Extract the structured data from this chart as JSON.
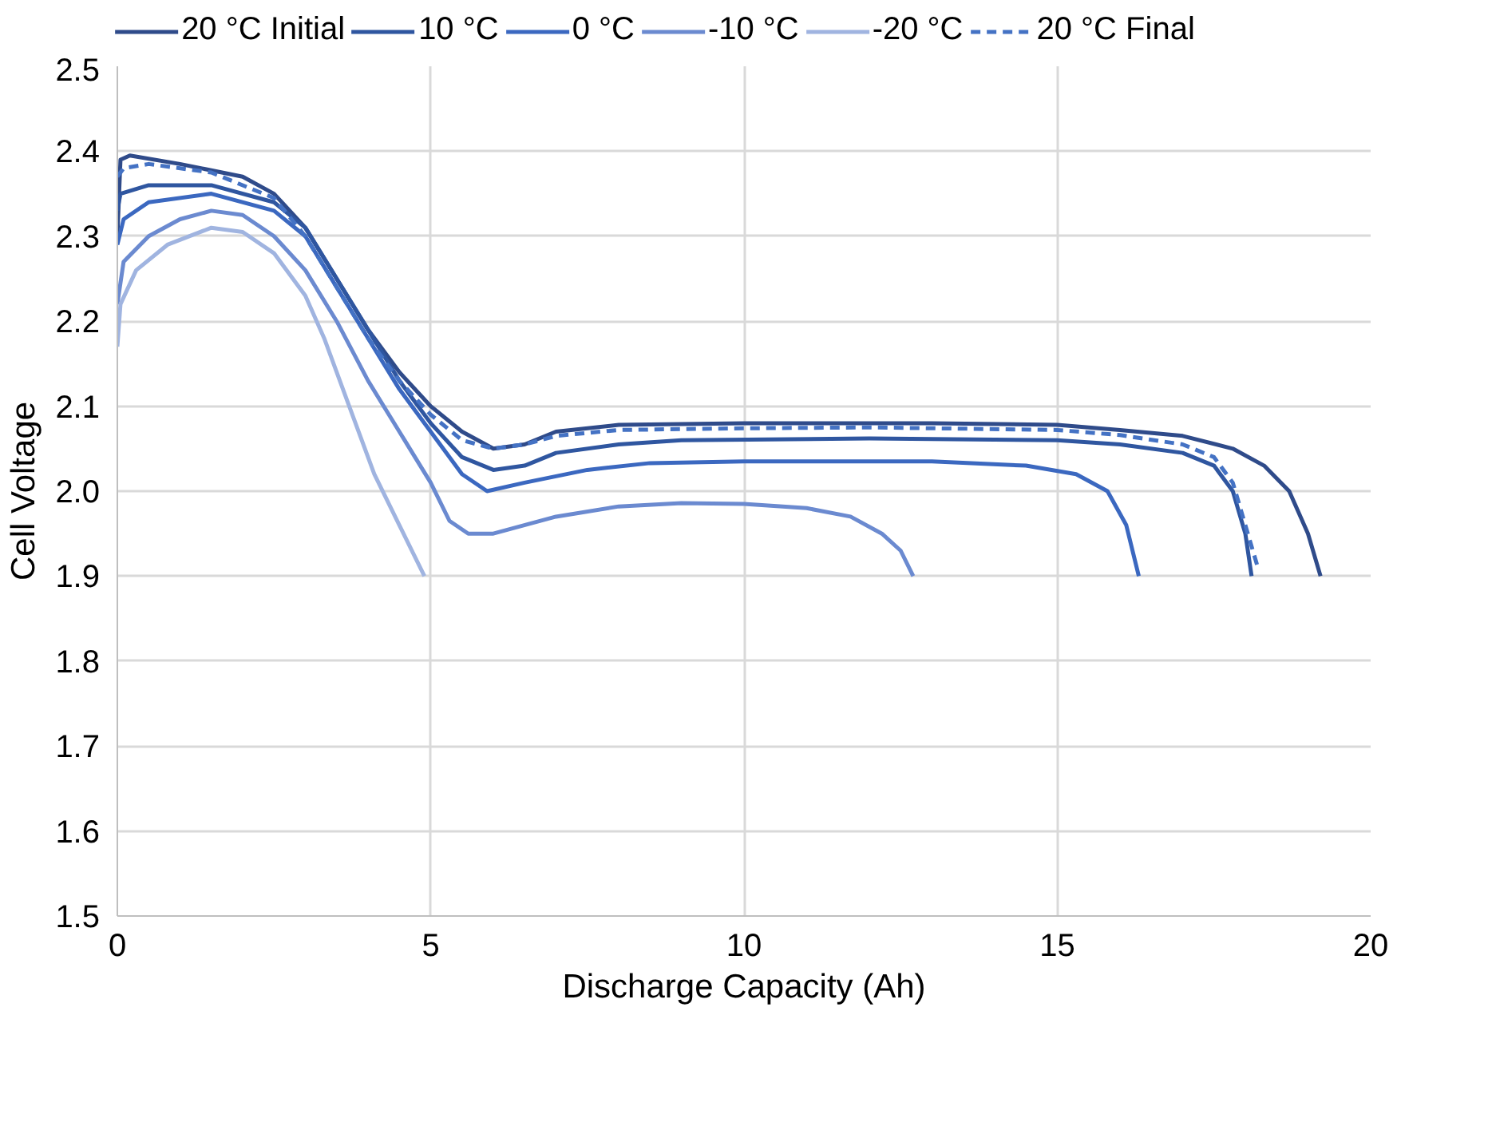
{
  "chart_data": {
    "type": "line",
    "xlabel": "Discharge Capacity (Ah)",
    "ylabel": "Cell Voltage",
    "xlim": [
      0,
      20
    ],
    "xticks": [
      0,
      5,
      10,
      15,
      20
    ],
    "ylim": [
      1.5,
      2.5
    ],
    "yticks": [
      1.5,
      1.6,
      1.7,
      1.8,
      1.9,
      {
        "value": 2,
        "label": "2.0"
      },
      2.1,
      2.2,
      2.3,
      2.4,
      2.5
    ],
    "grid": true,
    "legend": "top",
    "marker": "none",
    "line_style": "solid",
    "series": [
      {
        "name": "20 °C Initial",
        "color": "#2f4b8a",
        "x": [
          0,
          0.05,
          0.2,
          1,
          2,
          2.5,
          3,
          3.5,
          4,
          4.5,
          5,
          5.5,
          6,
          6.5,
          7,
          8,
          10,
          13,
          15,
          16,
          17,
          17.8,
          18.3,
          18.7,
          19.0,
          19.2
        ],
        "values": [
          2.3,
          2.39,
          2.395,
          2.385,
          2.37,
          2.35,
          2.31,
          2.25,
          2.19,
          2.14,
          2.1,
          2.07,
          2.05,
          2.055,
          2.07,
          2.078,
          2.08,
          2.08,
          2.078,
          2.072,
          2.065,
          2.05,
          2.03,
          2.0,
          1.95,
          1.9
        ]
      },
      {
        "name": "10 °C",
        "color": "#2f56a0",
        "x": [
          0,
          0.05,
          0.5,
          1.5,
          2.5,
          3,
          3.5,
          4,
          4.5,
          5,
          5.5,
          6,
          6.5,
          7,
          8,
          9,
          12,
          15,
          16,
          17,
          17.5,
          17.8,
          18.0,
          18.1
        ],
        "values": [
          2.33,
          2.35,
          2.36,
          2.36,
          2.34,
          2.31,
          2.25,
          2.19,
          2.13,
          2.08,
          2.04,
          2.025,
          2.03,
          2.045,
          2.055,
          2.06,
          2.062,
          2.06,
          2.055,
          2.045,
          2.03,
          2.0,
          1.95,
          1.9
        ]
      },
      {
        "name": "0 °C",
        "color": "#3b68c0",
        "x": [
          0,
          0.1,
          0.5,
          1.5,
          2.5,
          3,
          3.5,
          4,
          4.5,
          5,
          5.5,
          5.9,
          6.5,
          7.5,
          8.5,
          10,
          13,
          14.5,
          15.3,
          15.8,
          16.1,
          16.3
        ],
        "values": [
          2.29,
          2.32,
          2.34,
          2.35,
          2.33,
          2.3,
          2.24,
          2.18,
          2.12,
          2.07,
          2.02,
          2.0,
          2.01,
          2.025,
          2.033,
          2.035,
          2.035,
          2.03,
          2.02,
          2.0,
          1.96,
          1.9
        ]
      },
      {
        "name": "-10 °C",
        "color": "#6b8ad0",
        "x": [
          0,
          0.1,
          0.5,
          1,
          1.5,
          2,
          2.5,
          3,
          3.5,
          4,
          4.5,
          5,
          5.3,
          5.6,
          6,
          7,
          8,
          9,
          10,
          11,
          11.7,
          12.2,
          12.5,
          12.7
        ],
        "values": [
          2.22,
          2.27,
          2.3,
          2.32,
          2.33,
          2.325,
          2.3,
          2.26,
          2.2,
          2.13,
          2.07,
          2.01,
          1.965,
          1.95,
          1.95,
          1.97,
          1.982,
          1.986,
          1.985,
          1.98,
          1.97,
          1.95,
          1.93,
          1.9
        ]
      },
      {
        "name": "-20 °C",
        "color": "#a0b4e0",
        "x": [
          0,
          0.05,
          0.3,
          0.8,
          1.5,
          2,
          2.5,
          3,
          3.3,
          3.7,
          4.1,
          4.5,
          4.9
        ],
        "values": [
          2.17,
          2.22,
          2.26,
          2.29,
          2.31,
          2.305,
          2.28,
          2.23,
          2.18,
          2.1,
          2.02,
          1.96,
          1.9
        ]
      },
      {
        "name": "20 °C Final",
        "color": "#4472c4",
        "line_style": "dashed",
        "x": [
          0,
          0.1,
          0.5,
          1.5,
          2.5,
          3,
          3.5,
          4,
          4.5,
          5,
          5.5,
          6,
          6.5,
          7,
          8,
          10,
          12,
          15,
          16,
          17,
          17.5,
          17.8,
          18.0,
          18.2
        ],
        "values": [
          2.37,
          2.38,
          2.385,
          2.375,
          2.345,
          2.3,
          2.24,
          2.18,
          2.13,
          2.09,
          2.06,
          2.05,
          2.055,
          2.065,
          2.072,
          2.074,
          2.075,
          2.072,
          2.066,
          2.055,
          2.04,
          2.01,
          1.96,
          1.91
        ]
      }
    ]
  }
}
